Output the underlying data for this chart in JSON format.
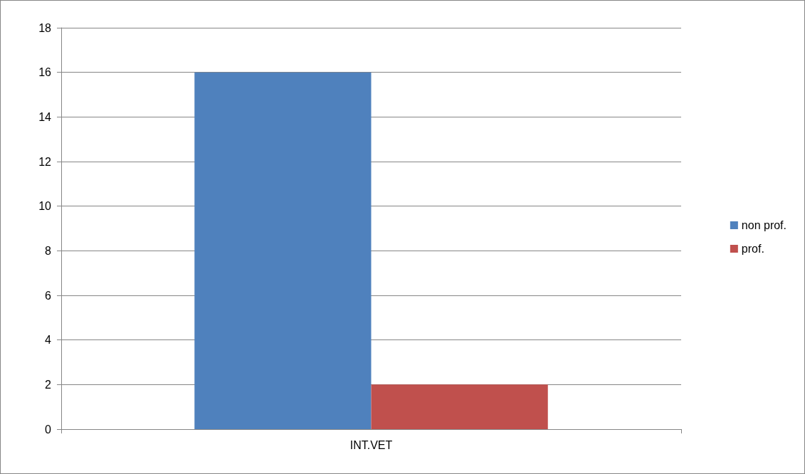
{
  "chart_data": {
    "type": "bar",
    "categories": [
      "INT.VET"
    ],
    "series": [
      {
        "name": "non prof.",
        "color": "#4f81bd",
        "values": [
          16
        ]
      },
      {
        "name": "prof.",
        "color": "#c0504d",
        "values": [
          2
        ]
      }
    ],
    "ylim": [
      0,
      18
    ],
    "yticks": [
      0,
      2,
      4,
      6,
      8,
      10,
      12,
      14,
      16,
      18
    ],
    "grid": "y",
    "legend": "right"
  }
}
